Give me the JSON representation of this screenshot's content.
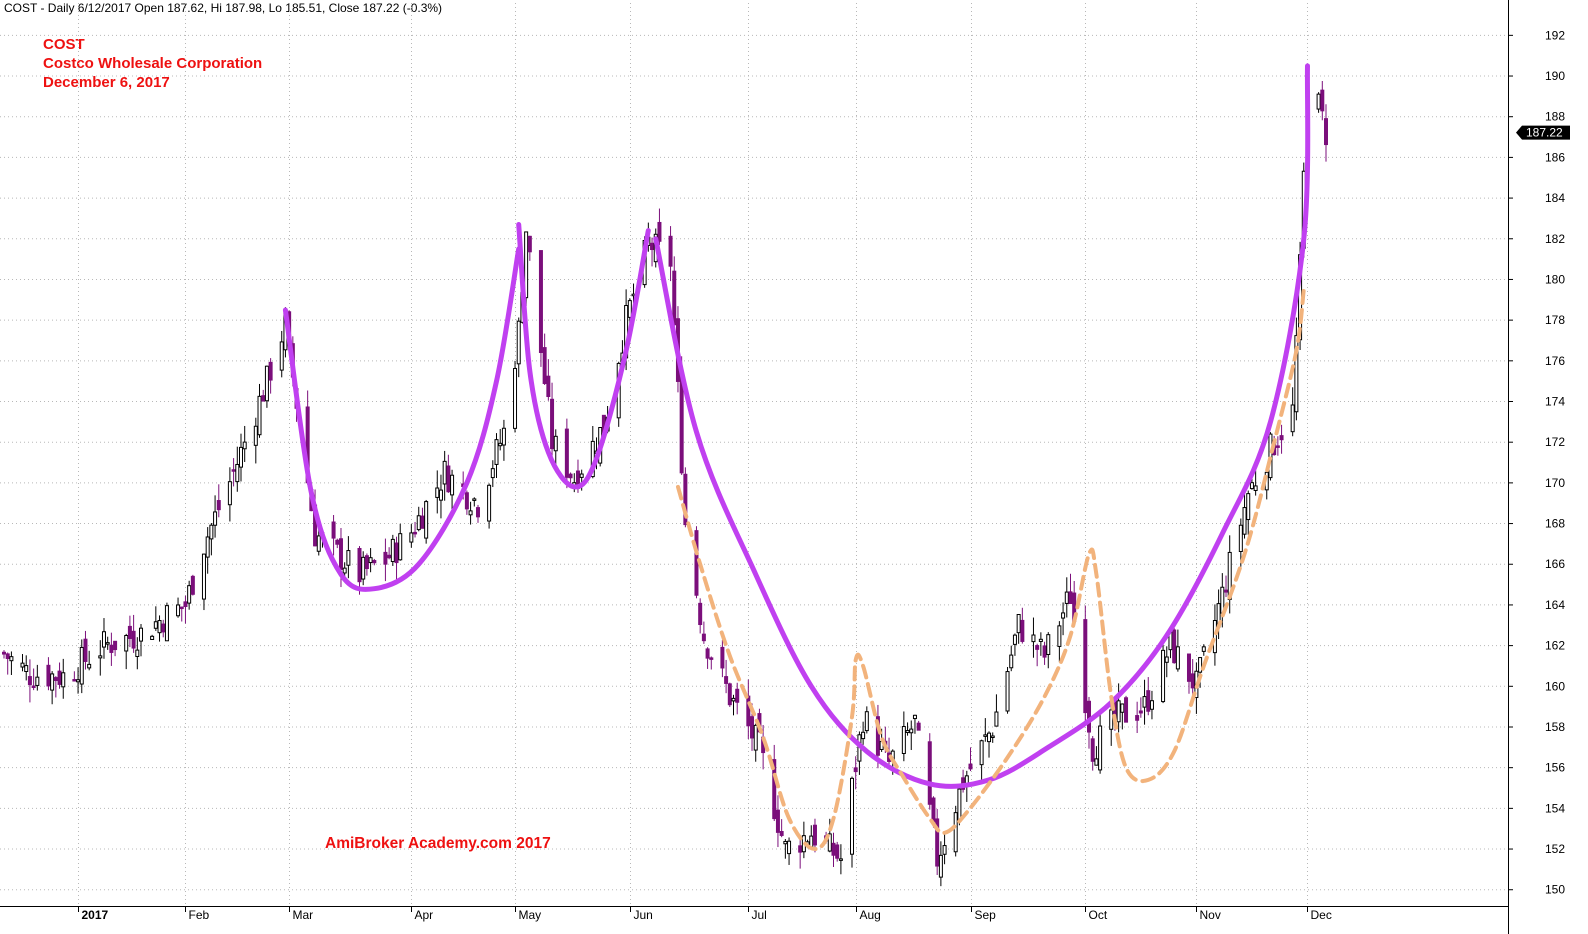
{
  "header": {
    "symbol_line": "COST - Daily 6/12/2017 Open 187.62, Hi 187.98, Lo 185.51, Close 187.22 (-0.3%)"
  },
  "annotation": {
    "ticker": "COST",
    "company": "Costco Wholesale Corporation",
    "date": "December 6, 2017"
  },
  "watermark": "AmiBroker Academy.com  2017",
  "colors": {
    "up_candle": "#ffffff",
    "down_candle": "#7b0f7b",
    "wick": "#000000",
    "grid": "#b8b8b8",
    "main_curve": "#c040f0",
    "dashed_curve": "#f2b37c",
    "annotation_text": "#ee1111"
  },
  "chart_data": {
    "type": "candlestick",
    "ylim": [
      149.2,
      193
    ],
    "yticks": [
      150,
      152,
      154,
      156,
      158,
      160,
      162,
      164,
      166,
      168,
      170,
      172,
      174,
      176,
      178,
      180,
      182,
      184,
      186,
      188,
      190,
      192
    ],
    "ytick_labels": [
      "150",
      "152",
      "154",
      "156",
      "158",
      "160",
      "162",
      "164",
      "166",
      "168",
      "170",
      "172",
      "174",
      "176",
      "178",
      "180",
      "182",
      "184",
      "186",
      "188",
      "190",
      "192"
    ],
    "last_price_label": "187.22",
    "last_price": 187.22,
    "x_months": [
      {
        "label": "2017",
        "date": "2017-01-03"
      },
      {
        "label": "Feb",
        "date": "2017-02-01"
      },
      {
        "label": "Mar",
        "date": "2017-03-01"
      },
      {
        "label": "Apr",
        "date": "2017-04-03"
      },
      {
        "label": "May",
        "date": "2017-05-01"
      },
      {
        "label": "Jun",
        "date": "2017-06-01"
      },
      {
        "label": "Jul",
        "date": "2017-07-03"
      },
      {
        "label": "Aug",
        "date": "2017-08-01"
      },
      {
        "label": "Sep",
        "date": "2017-09-01"
      },
      {
        "label": "Oct",
        "date": "2017-10-02"
      },
      {
        "label": "Nov",
        "date": "2017-11-01"
      },
      {
        "label": "Dec",
        "date": "2017-12-01"
      }
    ],
    "price_path_dates": [
      "2016-12-14",
      "2016-12-21",
      "2016-12-30",
      "2017-01-10",
      "2017-01-20",
      "2017-01-27",
      "2017-02-01",
      "2017-02-06",
      "2017-02-14",
      "2017-02-23",
      "2017-02-28",
      "2017-03-08",
      "2017-03-20",
      "2017-03-27",
      "2017-04-03",
      "2017-04-12",
      "2017-04-21",
      "2017-04-28",
      "2017-05-02",
      "2017-05-04",
      "2017-05-11",
      "2017-05-17",
      "2017-05-25",
      "2017-05-31",
      "2017-06-06",
      "2017-06-12",
      "2017-06-16",
      "2017-06-21",
      "2017-06-28",
      "2017-07-06",
      "2017-07-13",
      "2017-07-20",
      "2017-07-28",
      "2017-08-03",
      "2017-08-10",
      "2017-08-17",
      "2017-08-23",
      "2017-08-30",
      "2017-09-07",
      "2017-09-14",
      "2017-09-21",
      "2017-09-28",
      "2017-10-04",
      "2017-10-11",
      "2017-10-18",
      "2017-10-25",
      "2017-11-01",
      "2017-11-08",
      "2017-11-15",
      "2017-11-22",
      "2017-11-27",
      "2017-11-29",
      "2017-12-01",
      "2017-12-04",
      "2017-12-06"
    ],
    "price_path_closes": [
      161.6,
      160.6,
      160.5,
      162.0,
      162.6,
      163.5,
      164.0,
      167.0,
      170.5,
      175.0,
      177.8,
      167.5,
      165.5,
      166.2,
      167.6,
      170.5,
      169.0,
      172.5,
      177.5,
      182.5,
      172.0,
      170.2,
      172.8,
      178.0,
      181.8,
      180.9,
      168.0,
      162.5,
      159.5,
      157.0,
      152.0,
      152.8,
      151.5,
      158.5,
      156.2,
      158.2,
      151.5,
      155.3,
      158.0,
      163.0,
      161.5,
      164.5,
      157.0,
      158.5,
      159.0,
      162.0,
      160.0,
      164.5,
      169.5,
      172.0,
      173.5,
      180.5,
      189.5,
      188.5,
      187.22
    ],
    "curves": [
      {
        "style": "solid",
        "points": [
          [
            "2017-02-28",
            178.5
          ],
          [
            "2017-03-07",
            169.5
          ],
          [
            "2017-03-15",
            165.5
          ],
          [
            "2017-03-24",
            164.8
          ],
          [
            "2017-04-05",
            166.0
          ],
          [
            "2017-04-18",
            170.0
          ],
          [
            "2017-04-26",
            175.0
          ],
          [
            "2017-05-02",
            181.5
          ]
        ]
      },
      {
        "style": "solid",
        "points": [
          [
            "2017-05-02",
            182.7
          ],
          [
            "2017-05-05",
            175.5
          ],
          [
            "2017-05-10",
            171.5
          ],
          [
            "2017-05-17",
            169.8
          ],
          [
            "2017-05-23",
            171.2
          ],
          [
            "2017-05-31",
            176.5
          ],
          [
            "2017-06-06",
            182.4
          ]
        ]
      },
      {
        "style": "solid",
        "points": [
          [
            "2017-06-08",
            182.0
          ],
          [
            "2017-06-19",
            172.5
          ],
          [
            "2017-07-05",
            165.5
          ],
          [
            "2017-07-20",
            160.0
          ],
          [
            "2017-08-04",
            156.8
          ],
          [
            "2017-08-21",
            155.2
          ],
          [
            "2017-09-06",
            155.4
          ],
          [
            "2017-09-22",
            157.0
          ],
          [
            "2017-10-09",
            159.2
          ],
          [
            "2017-10-24",
            162.5
          ],
          [
            "2017-11-08",
            167.5
          ],
          [
            "2017-11-21",
            173.0
          ],
          [
            "2017-11-30",
            182.0
          ],
          [
            "2017-12-01",
            190.5
          ]
        ]
      },
      {
        "style": "dashed",
        "points": [
          [
            "2017-06-14",
            169.8
          ],
          [
            "2017-06-20",
            166.0
          ],
          [
            "2017-06-28",
            161.5
          ],
          [
            "2017-07-07",
            157.5
          ],
          [
            "2017-07-14",
            153.5
          ],
          [
            "2017-07-21",
            152.0
          ],
          [
            "2017-07-26",
            153.5
          ],
          [
            "2017-07-31",
            158.5
          ],
          [
            "2017-08-01",
            161.3
          ],
          [
            "2017-08-03",
            161.0
          ],
          [
            "2017-08-08",
            157.5
          ],
          [
            "2017-08-14",
            155.5
          ],
          [
            "2017-08-21",
            153.5
          ],
          [
            "2017-08-25",
            152.8
          ],
          [
            "2017-08-31",
            153.8
          ],
          [
            "2017-09-11",
            156.5
          ],
          [
            "2017-09-21",
            159.5
          ],
          [
            "2017-09-28",
            162.5
          ],
          [
            "2017-10-03",
            166.5
          ],
          [
            "2017-10-05",
            165.5
          ],
          [
            "2017-10-09",
            159.5
          ],
          [
            "2017-10-13",
            156.0
          ],
          [
            "2017-10-19",
            155.4
          ],
          [
            "2017-10-26",
            156.8
          ],
          [
            "2017-11-03",
            161.0
          ],
          [
            "2017-11-14",
            166.5
          ],
          [
            "2017-11-22",
            172.0
          ],
          [
            "2017-11-28",
            176.5
          ],
          [
            "2017-11-30",
            179.5
          ]
        ]
      }
    ]
  }
}
